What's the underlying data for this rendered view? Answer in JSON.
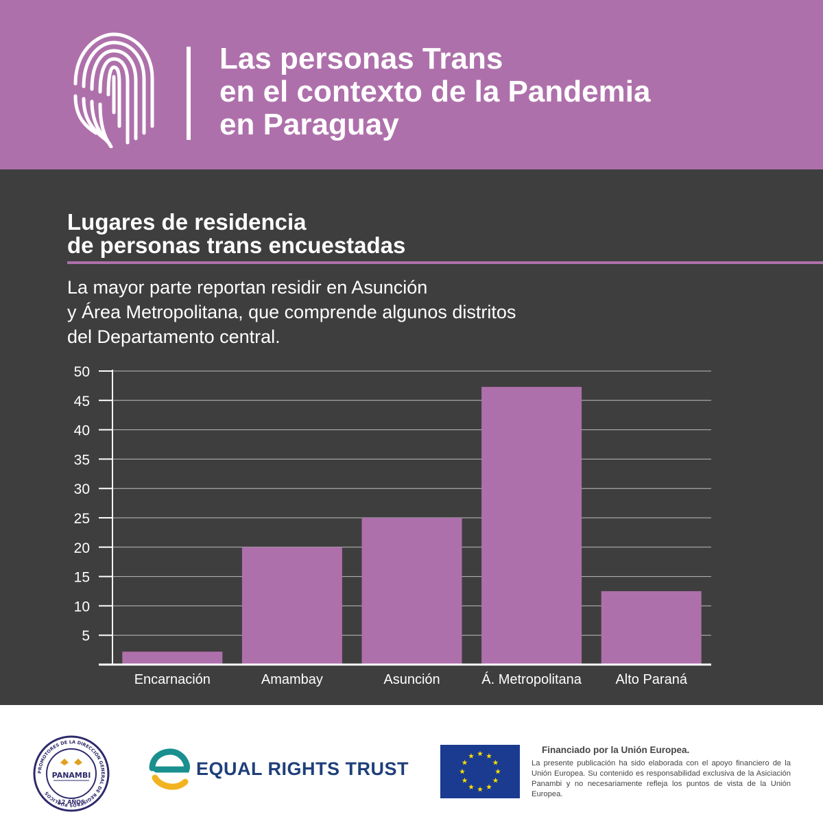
{
  "header": {
    "title_lines": [
      "Las personas Trans",
      "en el contexto de la Pandemia",
      "en Paraguay"
    ]
  },
  "section": {
    "title_lines": [
      "Lugares de residencia",
      "de personas trans encuestadas"
    ],
    "description_lines": [
      "La mayor parte reportan residir en Asunción",
      "y Área Metropolitana, que comprende algunos distritos",
      "del Departamento central."
    ]
  },
  "chart_data": {
    "type": "bar",
    "categories": [
      "Encarnación",
      "Amambay",
      "Asunción",
      "Á. Metropolitana",
      "Alto Paraná"
    ],
    "values": [
      2.2,
      20,
      25,
      47.3,
      12.5
    ],
    "yticks": [
      "5",
      "10",
      "15",
      "20",
      "25",
      "30",
      "35",
      "40",
      "45",
      "50"
    ],
    "ylim": [
      0,
      50
    ],
    "grid": true,
    "bar_color": "#ae70ab"
  },
  "footer": {
    "panambi": {
      "name": "PANAMBI",
      "ring_text": "PROMOTORES DE LA DIRECCIÓN GENERAL DE REGISTROS PÚBLICOS",
      "years": "12 AÑOS"
    },
    "ert_name": "EQUAL RIGHTS TRUST",
    "eu_title": "Financiado por la Unión Europea.",
    "eu_body": "La presente publicación ha sido elaborada con el apoyo financiero de la Unión Europea. Su contenido es responsabilidad exclusiva de la Asiciación Panambi y no necesariamente refleja los puntos de vista de la Unión Europea."
  },
  "colors": {
    "accent": "#ae70ab",
    "dark_bg": "#3f3e3f",
    "ert_blue": "#1f3f7a",
    "ert_teal": "#1a8f8f",
    "ert_yellow": "#f2b320",
    "eu_blue": "#1a3b8f",
    "eu_star": "#ffdd00"
  },
  "icons": [
    "fingerprint-icon",
    "panambi-seal-icon",
    "equal-rights-trust-logo-icon",
    "eu-flag-icon"
  ]
}
